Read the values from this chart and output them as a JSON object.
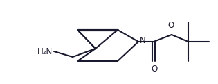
{
  "bg_color": "#ffffff",
  "line_color": "#1a1a2e",
  "line_width": 1.5,
  "fig_width": 3.15,
  "fig_height": 1.21,
  "dpi": 100,
  "h2n_label": "H₂N",
  "n_label": "N",
  "o_label_top": "O",
  "o_label_bottom": "O",
  "font_size_labels": 8.5
}
